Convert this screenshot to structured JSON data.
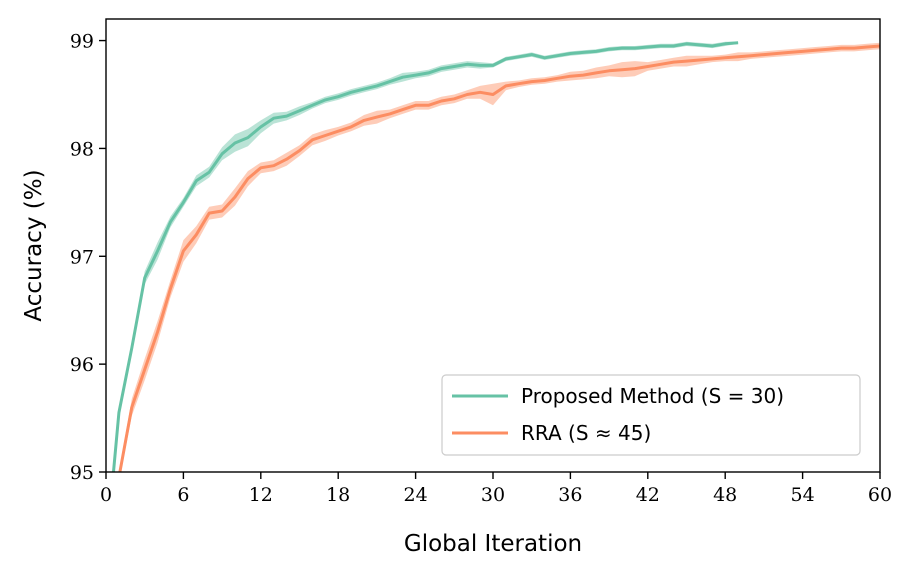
{
  "chart_data": {
    "type": "line",
    "xlabel": "Global Iteration",
    "ylabel": "Accuracy (%)",
    "xlim": [
      0,
      60
    ],
    "ylim": [
      95,
      99.2
    ],
    "xticks": [
      0,
      6,
      12,
      18,
      24,
      30,
      36,
      42,
      48,
      54,
      60
    ],
    "yticks": [
      95,
      96,
      97,
      98,
      99
    ],
    "grid": false,
    "legend": "bottom-right",
    "series": [
      {
        "name": "Proposed Method (S = 30)",
        "color": "#66c2a5",
        "x": [
          0.5,
          1,
          2,
          3,
          4,
          5,
          6,
          7,
          8,
          9,
          10,
          11,
          12,
          13,
          14,
          15,
          16,
          17,
          18,
          19,
          20,
          21,
          22,
          23,
          24,
          25,
          26,
          27,
          28,
          29,
          30,
          31,
          32,
          33,
          34,
          35,
          36,
          37,
          38,
          39,
          40,
          41,
          42,
          43,
          44,
          45,
          46,
          47,
          48,
          49
        ],
        "y": [
          94.9,
          95.55,
          96.15,
          96.8,
          97.05,
          97.32,
          97.5,
          97.7,
          97.78,
          97.95,
          98.05,
          98.1,
          98.2,
          98.28,
          98.3,
          98.35,
          98.4,
          98.45,
          98.48,
          98.52,
          98.55,
          98.58,
          98.62,
          98.66,
          98.68,
          98.7,
          98.74,
          98.76,
          98.78,
          98.77,
          98.77,
          98.83,
          98.85,
          98.87,
          98.84,
          98.86,
          98.88,
          98.89,
          98.9,
          98.92,
          98.93,
          98.93,
          98.94,
          98.95,
          98.95,
          98.97,
          98.96,
          98.95,
          98.97,
          98.98
        ],
        "band": [
          0.0,
          0.05,
          0.05,
          0.06,
          0.08,
          0.05,
          0.04,
          0.05,
          0.05,
          0.06,
          0.08,
          0.08,
          0.06,
          0.05,
          0.04,
          0.04,
          0.03,
          0.03,
          0.03,
          0.03,
          0.03,
          0.03,
          0.03,
          0.04,
          0.03,
          0.03,
          0.03,
          0.03,
          0.03,
          0.03,
          0.02,
          0.02,
          0.02,
          0.02,
          0.02,
          0.02,
          0.02,
          0.02,
          0.02,
          0.02,
          0.02,
          0.02,
          0.02,
          0.02,
          0.02,
          0.02,
          0.02,
          0.02,
          0.02,
          0.01
        ]
      },
      {
        "name": "RRA (S ≈ 45)",
        "color": "#fc8d62",
        "x": [
          1,
          2,
          3,
          4,
          5,
          6,
          7,
          8,
          9,
          10,
          11,
          12,
          13,
          14,
          15,
          16,
          17,
          18,
          19,
          20,
          21,
          22,
          23,
          24,
          25,
          26,
          27,
          28,
          29,
          30,
          31,
          32,
          33,
          34,
          35,
          36,
          37,
          38,
          39,
          40,
          41,
          42,
          43,
          44,
          45,
          46,
          47,
          48,
          49,
          50,
          51,
          52,
          53,
          54,
          55,
          56,
          57,
          58,
          59,
          60
        ],
        "y": [
          94.95,
          95.6,
          95.95,
          96.3,
          96.7,
          97.05,
          97.2,
          97.4,
          97.42,
          97.55,
          97.72,
          97.82,
          97.84,
          97.9,
          97.98,
          98.08,
          98.12,
          98.16,
          98.2,
          98.26,
          98.29,
          98.32,
          98.36,
          98.4,
          98.4,
          98.44,
          98.46,
          98.5,
          98.52,
          98.5,
          98.58,
          98.6,
          98.62,
          98.63,
          98.65,
          98.67,
          98.68,
          98.7,
          98.72,
          98.73,
          98.74,
          98.76,
          98.78,
          98.8,
          98.81,
          98.82,
          98.83,
          98.84,
          98.85,
          98.86,
          98.87,
          98.88,
          98.89,
          98.9,
          98.91,
          98.92,
          98.93,
          98.93,
          98.94,
          98.95
        ],
        "band": [
          0.05,
          0.08,
          0.1,
          0.1,
          0.08,
          0.1,
          0.08,
          0.06,
          0.06,
          0.08,
          0.07,
          0.05,
          0.05,
          0.06,
          0.05,
          0.05,
          0.05,
          0.04,
          0.04,
          0.05,
          0.06,
          0.04,
          0.04,
          0.04,
          0.04,
          0.04,
          0.04,
          0.04,
          0.06,
          0.1,
          0.04,
          0.03,
          0.03,
          0.03,
          0.03,
          0.04,
          0.04,
          0.05,
          0.05,
          0.07,
          0.07,
          0.04,
          0.04,
          0.04,
          0.05,
          0.04,
          0.03,
          0.03,
          0.04,
          0.03,
          0.03,
          0.03,
          0.03,
          0.03,
          0.03,
          0.03,
          0.03,
          0.03,
          0.03,
          0.03
        ]
      }
    ]
  }
}
